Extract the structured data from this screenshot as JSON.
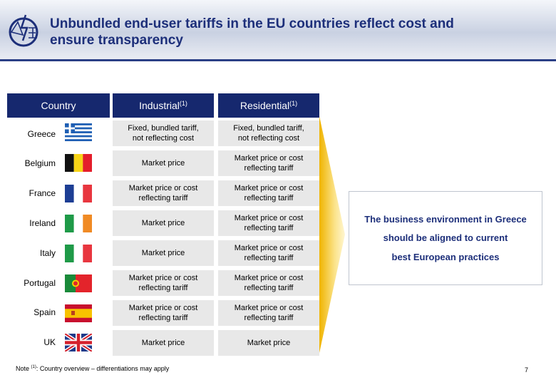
{
  "title_line1": "Unbundled end-user tariffs in the EU countries reflect cost and",
  "title_line2": "ensure transparency",
  "headers": {
    "country": "Country",
    "industrial": "Industrial",
    "residential": "Residential",
    "note_marker": "(1)"
  },
  "rows": [
    {
      "country": "Greece",
      "industrial": [
        "Fixed, bundled tariff,",
        "not reflecting cost"
      ],
      "residential": [
        "Fixed, bundled tariff,",
        "not reflecting cost"
      ]
    },
    {
      "country": "Belgium",
      "industrial": [
        "Market price",
        ""
      ],
      "residential": [
        "Market price or cost",
        "reflecting tariff"
      ]
    },
    {
      "country": "France",
      "industrial": [
        "Market price or cost",
        "reflecting tariff"
      ],
      "residential": [
        "Market price or cost",
        "reflecting tariff"
      ]
    },
    {
      "country": "Ireland",
      "industrial": [
        "Market price",
        ""
      ],
      "residential": [
        "Market price or cost",
        "reflecting tariff"
      ]
    },
    {
      "country": "Italy",
      "industrial": [
        "Market price",
        ""
      ],
      "residential": [
        "Market price or cost",
        "reflecting tariff"
      ]
    },
    {
      "country": "Portugal",
      "industrial": [
        "Market price or cost",
        "reflecting tariff"
      ],
      "residential": [
        "Market price or cost",
        "reflecting tariff"
      ]
    },
    {
      "country": "Spain",
      "industrial": [
        "Market price or cost",
        "reflecting tariff"
      ],
      "residential": [
        "Market price or cost",
        "reflecting tariff"
      ]
    },
    {
      "country": "UK",
      "industrial": [
        "Market price",
        ""
      ],
      "residential": [
        "Market price",
        ""
      ]
    }
  ],
  "message": {
    "line1": "The business environment in Greece",
    "line2": "should be aligned to current",
    "line3": "best European practices"
  },
  "note": {
    "prefix": "Note",
    "marker": "(1)",
    "text": ": Country overview – differentiations may apply"
  },
  "page_number": "7",
  "colors": {
    "header_fill": "#16286e",
    "cell_fill": "#e8e8e8",
    "title": "#1d2f7a",
    "arrow": "#f5c400"
  }
}
